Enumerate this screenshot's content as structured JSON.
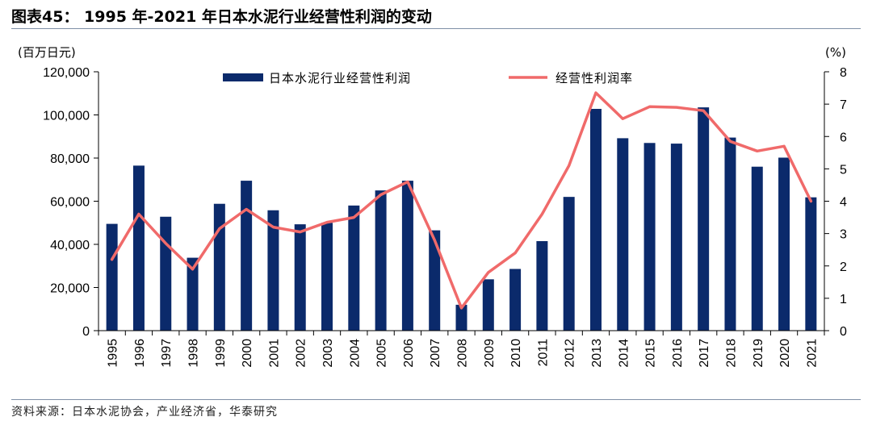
{
  "figure": {
    "title": "图表45： 1995 年-2021 年日本水泥行业经营性利润的变动",
    "source": "资料来源：日本水泥协会，产业经济省，华泰研究"
  },
  "chart_data": {
    "type": "bar+line",
    "categories": [
      "1995",
      "1996",
      "1997",
      "1998",
      "1999",
      "2000",
      "2001",
      "2002",
      "2003",
      "2004",
      "2005",
      "2006",
      "2007",
      "2008",
      "2009",
      "2010",
      "2011",
      "2012",
      "2013",
      "2014",
      "2015",
      "2016",
      "2017",
      "2018",
      "2019",
      "2020",
      "2021"
    ],
    "series": [
      {
        "name": "日本水泥行业经营性利润",
        "type": "bar",
        "axis": "left",
        "color": "#0b2a6b",
        "values": [
          49500,
          76500,
          52800,
          33800,
          58800,
          69500,
          55800,
          49300,
          50000,
          58000,
          65000,
          69500,
          46500,
          12000,
          23800,
          28600,
          41500,
          62000,
          102800,
          89200,
          87000,
          86700,
          103500,
          89500,
          76000,
          80200,
          61800
        ]
      },
      {
        "name": "经营性利润率",
        "type": "line",
        "axis": "right",
        "color": "#f06a6a",
        "values": [
          2.2,
          3.6,
          2.7,
          1.9,
          3.15,
          3.75,
          3.2,
          3.05,
          3.35,
          3.5,
          4.2,
          4.6,
          2.8,
          0.7,
          1.8,
          2.4,
          3.6,
          5.1,
          7.35,
          6.55,
          6.92,
          6.9,
          6.8,
          5.85,
          5.55,
          5.7,
          4.0
        ]
      }
    ],
    "y_left": {
      "label": "(百万日元)",
      "min": 0,
      "max": 120000,
      "ticks": [
        "0",
        "20,000",
        "40,000",
        "60,000",
        "80,000",
        "100,000",
        "120,000"
      ]
    },
    "y_right": {
      "label": "(%)",
      "min": 0,
      "max": 8,
      "ticks": [
        "0",
        "1",
        "2",
        "3",
        "4",
        "5",
        "6",
        "7",
        "8"
      ]
    },
    "grid": false,
    "legend": "top-center"
  }
}
